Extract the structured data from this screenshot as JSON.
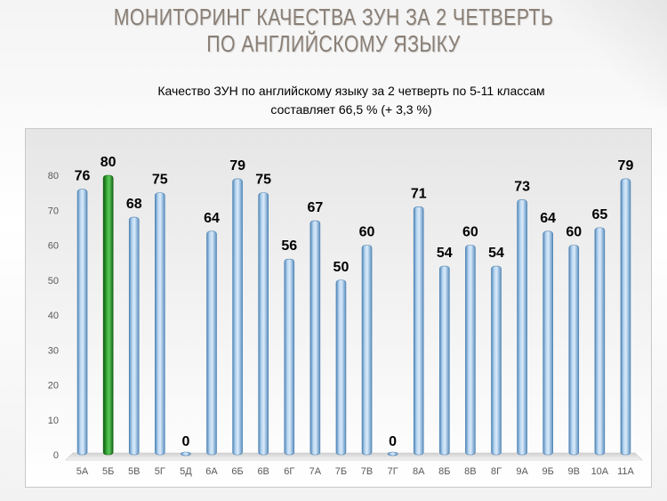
{
  "slide": {
    "title_line1": "МОНИТОРИНГ КАЧЕСТВА ЗУН ЗА 2  ЧЕТВЕРТЬ",
    "title_line2": "ПО  АНГЛИЙСКОМУ ЯЗЫКУ",
    "subtitle_line1": "Качество ЗУН по английскому языку  за 2 четверть  по 5-11 классам",
    "subtitle_line2": "составляет 66,5 % (+ 3,3 %)"
  },
  "colors": {
    "bar_blue": "#9dc3e6",
    "bar_blue_dark": "#4a7fb0",
    "bar_green": "#2e9a2e",
    "bar_green_dark": "#0f5a0f"
  },
  "chart_data": {
    "type": "bar",
    "title": "",
    "xlabel": "",
    "ylabel": "",
    "ylim": [
      0,
      80
    ],
    "yticks": [
      0,
      10,
      20,
      30,
      40,
      50,
      60,
      70,
      80
    ],
    "grid": false,
    "legend": "none",
    "categories": [
      "5А",
      "5Б",
      "5В",
      "5Г",
      "5Д",
      "6А",
      "6Б",
      "6В",
      "6Г",
      "7А",
      "7Б",
      "7В",
      "7Г",
      "8А",
      "8Б",
      "8В",
      "8Г",
      "9А",
      "9Б",
      "9В",
      "10А",
      "11А"
    ],
    "values": [
      76,
      80,
      68,
      75,
      0,
      64,
      79,
      75,
      56,
      67,
      50,
      60,
      0,
      71,
      54,
      60,
      54,
      73,
      64,
      60,
      65,
      79
    ],
    "highlight_index": 1
  }
}
